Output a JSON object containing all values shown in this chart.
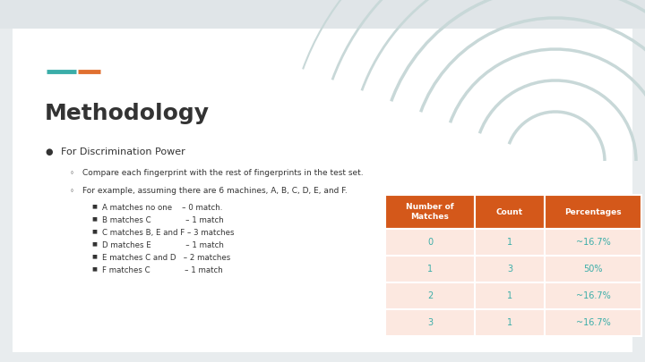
{
  "bg_color": "#e8ecee",
  "slide_bg": "#ffffff",
  "title": "Methodology",
  "title_fontsize": 18,
  "accent_color1": "#3aada8",
  "accent_color2": "#e07030",
  "bullet_text": "For Discrimination Power",
  "sub_bullets": [
    "Compare each fingerprint with the rest of fingerprints in the test set.",
    "For example, assuming there are 6 machines, A, B, C, D, E, and F."
  ],
  "sub_sub_bullets": [
    "A matches no one    – 0 match.",
    "B matches C              – 1 match",
    "C matches B, E and F – 3 matches",
    "D matches E              – 1 match",
    "E matches C and D   – 2 matches",
    "F matches C              – 1 match"
  ],
  "table_header": [
    "Number of\nMatches",
    "Count",
    "Percentages"
  ],
  "table_data": [
    [
      "0",
      "1",
      "~16.7%"
    ],
    [
      "1",
      "3",
      "50%"
    ],
    [
      "2",
      "1",
      "~16.7%"
    ],
    [
      "3",
      "1",
      "~16.7%"
    ]
  ],
  "table_header_bg": "#d4581a",
  "table_header_color": "#ffffff",
  "table_row_bg": "#fce8e0",
  "table_text_color": "#3aada8",
  "fingerprint_color": "#c8d8d8",
  "top_strip_color": "#e0e5e8",
  "text_color": "#333333"
}
